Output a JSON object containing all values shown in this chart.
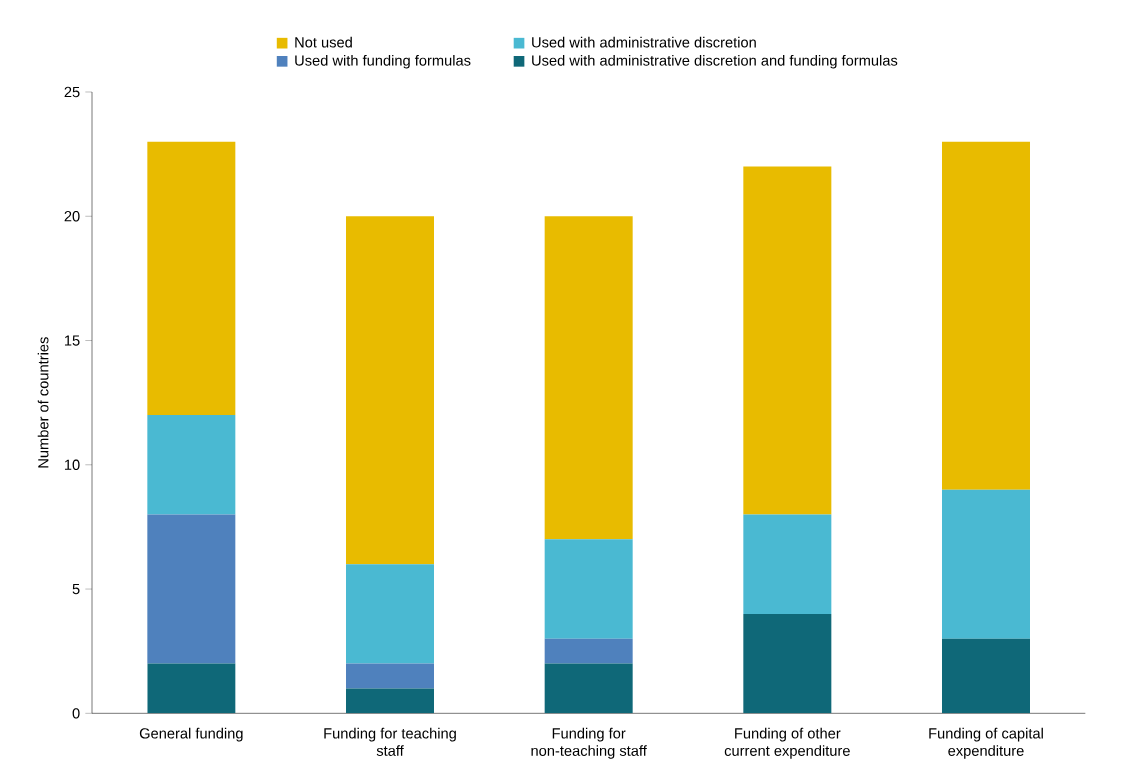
{
  "chart_data": {
    "type": "bar",
    "stacked": true,
    "ylabel": "Number of countries",
    "categories": [
      "General funding",
      "Funding for teaching staff",
      "Funding for non-teaching staff",
      "Funding of other current expenditure",
      "Funding of capital expenditure"
    ],
    "series": [
      {
        "name": "Used with administrative discretion and funding formulas",
        "color": "#0f6878",
        "values": [
          2,
          1,
          2,
          4,
          3
        ]
      },
      {
        "name": "Used with funding formulas",
        "color": "#4f81bd",
        "values": [
          6,
          1,
          1,
          0,
          0
        ]
      },
      {
        "name": "Used with administrative discretion",
        "color": "#4ab9d2",
        "values": [
          4,
          4,
          4,
          4,
          6
        ]
      },
      {
        "name": "Not used",
        "color": "#e8bb00",
        "values": [
          11,
          14,
          13,
          14,
          14
        ]
      }
    ],
    "ylim": [
      0,
      25
    ],
    "yticks": [
      0,
      5,
      10,
      15,
      20,
      25
    ],
    "grid": false,
    "legend": "top"
  }
}
